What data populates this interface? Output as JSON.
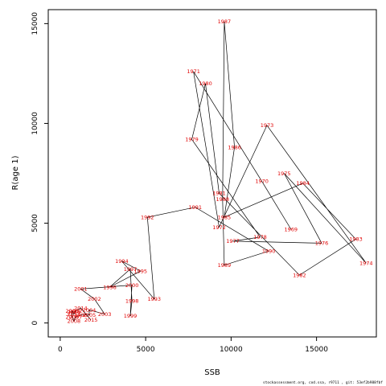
{
  "chart_data": {
    "type": "line",
    "title": "",
    "xlabel": "SSB",
    "ylabel": "R(age 1)",
    "xlim": [
      -700,
      18500
    ],
    "ylim": [
      -700,
      15700
    ],
    "x_ticks": [
      0,
      5000,
      10000,
      15000
    ],
    "y_ticks": [
      0,
      5000,
      10000,
      15000
    ],
    "grid": false,
    "line_color": "#000000",
    "label_color": "#e00000",
    "points": [
      {
        "year": "1969",
        "ssb": 13500,
        "rec": 4700
      },
      {
        "year": "1970",
        "ssb": 11800,
        "rec": 7100
      },
      {
        "year": "1971",
        "ssb": 7800,
        "rec": 12600
      },
      {
        "year": "1972",
        "ssb": 9300,
        "rec": 4800
      },
      {
        "year": "1973",
        "ssb": 12100,
        "rec": 9900
      },
      {
        "year": "1974",
        "ssb": 17900,
        "rec": 3000
      },
      {
        "year": "1975",
        "ssb": 13100,
        "rec": 7500
      },
      {
        "year": "1976",
        "ssb": 15300,
        "rec": 4000
      },
      {
        "year": "1977",
        "ssb": 10100,
        "rec": 4100
      },
      {
        "year": "1978",
        "ssb": 11700,
        "rec": 4300
      },
      {
        "year": "1979",
        "ssb": 7700,
        "rec": 9200
      },
      {
        "year": "1980",
        "ssb": 8500,
        "rec": 12000
      },
      {
        "year": "1981",
        "ssb": 9300,
        "rec": 6500
      },
      {
        "year": "1982",
        "ssb": 14000,
        "rec": 2400
      },
      {
        "year": "1983",
        "ssb": 17300,
        "rec": 4200
      },
      {
        "year": "1984",
        "ssb": 14200,
        "rec": 7000
      },
      {
        "year": "1985",
        "ssb": 9600,
        "rec": 5300
      },
      {
        "year": "1986",
        "ssb": 10200,
        "rec": 8800
      },
      {
        "year": "1987",
        "ssb": 9600,
        "rec": 15100
      },
      {
        "year": "1988",
        "ssb": 9500,
        "rec": 6200
      },
      {
        "year": "1989",
        "ssb": 9600,
        "rec": 2900
      },
      {
        "year": "1990",
        "ssb": 12200,
        "rec": 3600
      },
      {
        "year": "1991",
        "ssb": 7900,
        "rec": 5800
      },
      {
        "year": "1992",
        "ssb": 5100,
        "rec": 5300
      },
      {
        "year": "1993",
        "ssb": 5500,
        "rec": 1200
      },
      {
        "year": "1994",
        "ssb": 3600,
        "rec": 3100
      },
      {
        "year": "1995",
        "ssb": 4700,
        "rec": 2600
      },
      {
        "year": "1996",
        "ssb": 2900,
        "rec": 1800
      },
      {
        "year": "1997",
        "ssb": 4100,
        "rec": 2700
      },
      {
        "year": "1998",
        "ssb": 4200,
        "rec": 1100
      },
      {
        "year": "1999",
        "ssb": 4100,
        "rec": 350
      },
      {
        "year": "2000",
        "ssb": 4200,
        "rec": 1900
      },
      {
        "year": "2001",
        "ssb": 1200,
        "rec": 1700
      },
      {
        "year": "2002",
        "ssb": 2000,
        "rec": 1200
      },
      {
        "year": "2003",
        "ssb": 2600,
        "rec": 450
      },
      {
        "year": "2004",
        "ssb": 1700,
        "rec": 650
      },
      {
        "year": "2005",
        "ssb": 1700,
        "rec": 400
      },
      {
        "year": "2006",
        "ssb": 1200,
        "rec": 400
      },
      {
        "year": "2007",
        "ssb": 900,
        "rec": 300
      },
      {
        "year": "2008",
        "ssb": 800,
        "rec": 100
      },
      {
        "year": "2009",
        "ssb": 700,
        "rec": 300
      },
      {
        "year": "2010",
        "ssb": 700,
        "rec": 600
      },
      {
        "year": "2011",
        "ssb": 800,
        "rec": 450
      },
      {
        "year": "2012",
        "ssb": 900,
        "rec": 600
      },
      {
        "year": "2013",
        "ssb": 800,
        "rec": 550
      },
      {
        "year": "2014",
        "ssb": 1200,
        "rec": 750
      },
      {
        "year": "2015",
        "ssb": 1800,
        "rec": 150
      }
    ]
  },
  "footer_text": "stockassessment.org, cod.ssa, r9711 , git: 53ef2b988fbf"
}
